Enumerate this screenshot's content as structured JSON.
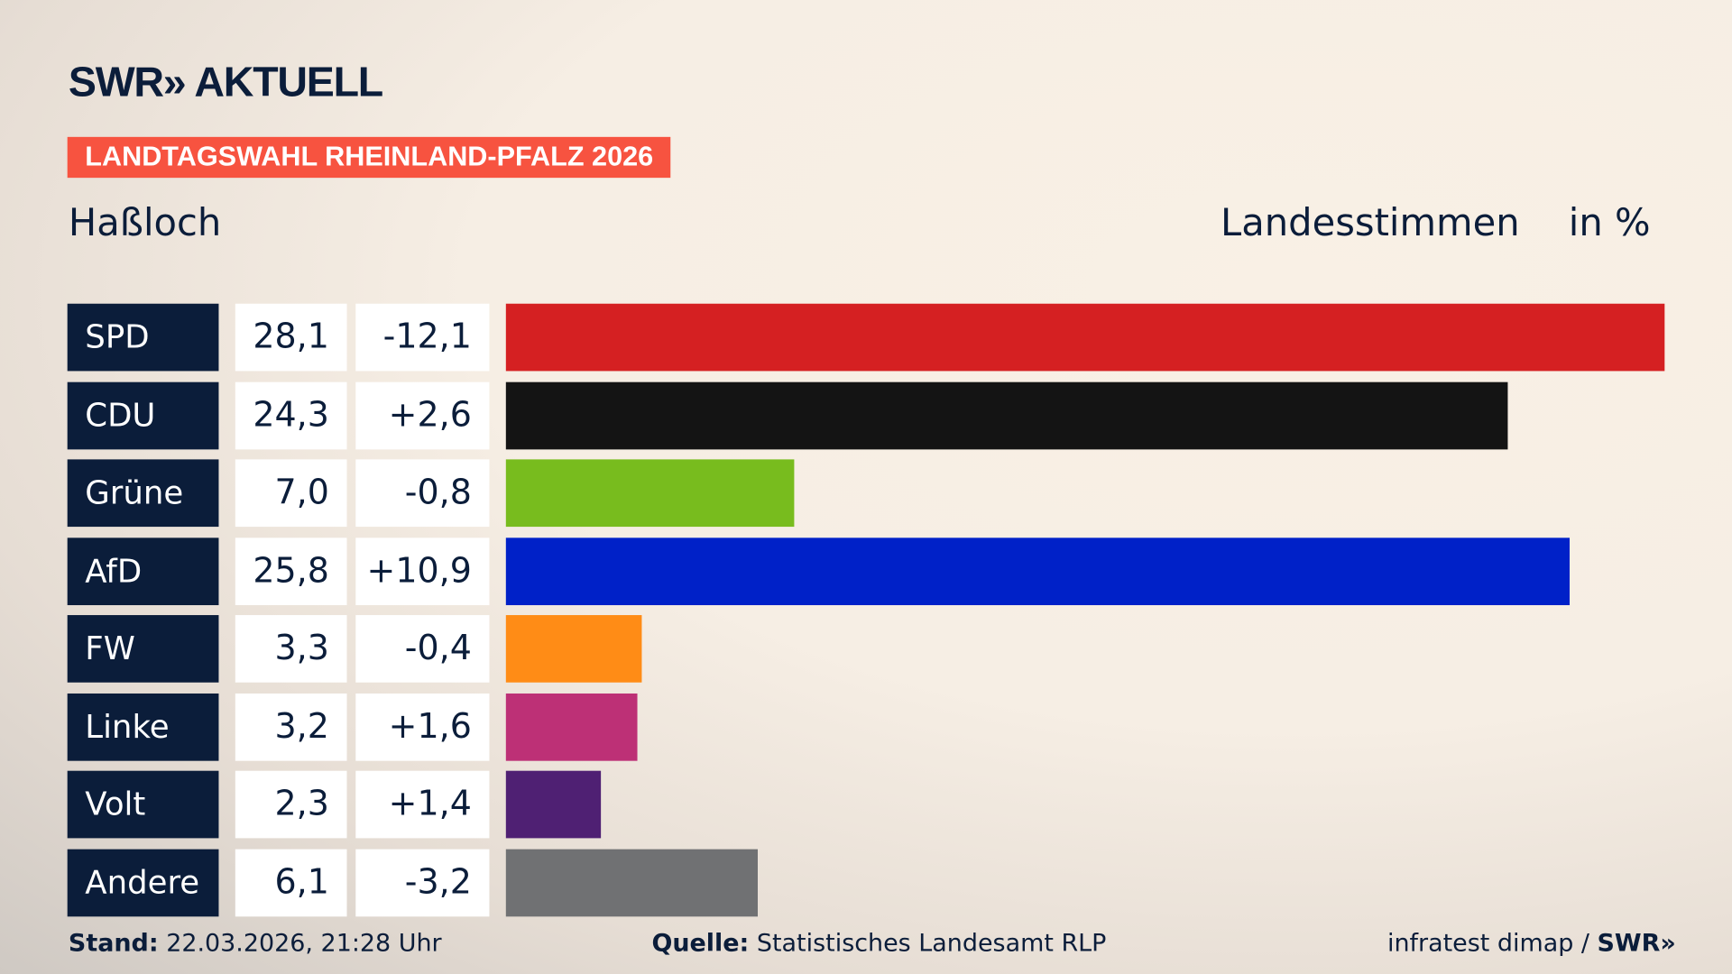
{
  "header": {
    "logo": "SWR» AKTUELL",
    "banner": "LANDTAGSWAHL RHEINLAND-PFALZ 2026",
    "place": "Haßloch",
    "measure": "Landesstimmen",
    "unit": "in %"
  },
  "chart_data": {
    "type": "bar",
    "orientation": "horizontal",
    "categories": [
      "SPD",
      "CDU",
      "Grüne",
      "AfD",
      "FW",
      "Linke",
      "Volt",
      "Andere"
    ],
    "values": [
      28.1,
      24.3,
      7.0,
      25.8,
      3.3,
      3.2,
      2.3,
      6.1
    ],
    "value_labels": [
      "28,1",
      "24,3",
      "7,0",
      "25,8",
      "3,3",
      "3,2",
      "2,3",
      "6,1"
    ],
    "change_labels": [
      "-12,1",
      "+2,6",
      "-0,8",
      "+10,9",
      "-0,4",
      "+1,6",
      "+1,4",
      "-3,2"
    ],
    "changes": [
      -12.1,
      2.6,
      -0.8,
      10.9,
      -0.4,
      1.6,
      1.4,
      -3.2
    ],
    "colors": [
      "#d52022",
      "#141414",
      "#78bc1e",
      "#0021c8",
      "#ff8c16",
      "#bd3076",
      "#4f2073",
      "#707173"
    ],
    "grid": false
  },
  "footer": {
    "stand_label": "Stand:",
    "stand": "22.03.2026, 21:28 Uhr",
    "source_label": "Quelle:",
    "source": "Statistisches Landesamt RLP",
    "credit": "infratest dimap / ",
    "credit_logo": "SWR»"
  }
}
